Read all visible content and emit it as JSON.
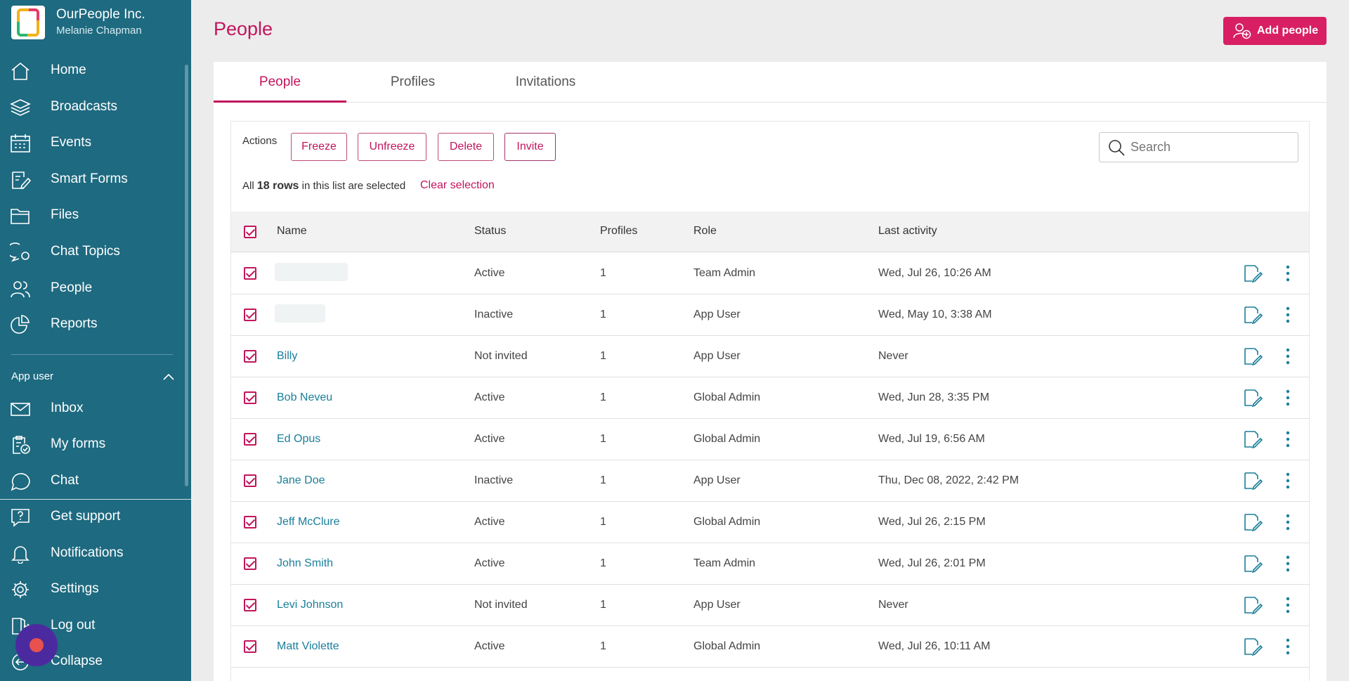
{
  "org": {
    "name": "OurPeople Inc.",
    "user": "Melanie Chapman"
  },
  "sidebar": {
    "items": [
      {
        "label": "Home",
        "icon": "home-icon"
      },
      {
        "label": "Broadcasts",
        "icon": "layers-icon"
      },
      {
        "label": "Events",
        "icon": "calendar-icon"
      },
      {
        "label": "Smart Forms",
        "icon": "form-edit-icon"
      },
      {
        "label": "Files",
        "icon": "folder-icon"
      },
      {
        "label": "Chat Topics",
        "icon": "chat-topics-icon"
      },
      {
        "label": "People",
        "icon": "people-icon"
      },
      {
        "label": "Reports",
        "icon": "pie-chart-icon"
      }
    ],
    "section_label": "App user",
    "app_user_items": [
      {
        "label": "Inbox",
        "icon": "mail-icon"
      },
      {
        "label": "My forms",
        "icon": "clipboard-icon"
      },
      {
        "label": "Chat",
        "icon": "chat-icon"
      }
    ],
    "bottom_items": [
      {
        "label": "Get support",
        "icon": "help-icon"
      },
      {
        "label": "Notifications",
        "icon": "bell-icon"
      },
      {
        "label": "Settings",
        "icon": "gear-icon"
      },
      {
        "label": "Log out",
        "icon": "logout-icon"
      },
      {
        "label": "Collapse",
        "icon": "collapse-icon"
      }
    ]
  },
  "header": {
    "title": "People",
    "add_button": "Add people"
  },
  "tabs": [
    {
      "label": "People"
    },
    {
      "label": "Profiles"
    },
    {
      "label": "Invitations"
    }
  ],
  "actions": {
    "label": "Actions",
    "buttons": [
      "Freeze",
      "Unfreeze",
      "Delete",
      "Invite"
    ],
    "search_placeholder": "Search"
  },
  "selection": {
    "prefix": "All",
    "count": "18 rows",
    "suffix": "in this list are selected",
    "clear": "Clear selection"
  },
  "table": {
    "columns": [
      "Name",
      "Status",
      "Profiles",
      "Role",
      "Last activity"
    ],
    "rows": [
      {
        "name": "",
        "status": "Active",
        "profiles": "1",
        "role": "Team Admin",
        "last": "Wed, Jul 26, 10:26 AM"
      },
      {
        "name": "",
        "status": "Inactive",
        "profiles": "1",
        "role": "App User",
        "last": "Wed, May 10, 3:38 AM"
      },
      {
        "name": "Billy",
        "status": "Not invited",
        "profiles": "1",
        "role": "App User",
        "last": "Never"
      },
      {
        "name": "Bob Neveu",
        "status": "Active",
        "profiles": "1",
        "role": "Global Admin",
        "last": "Wed, Jun 28, 3:35 PM"
      },
      {
        "name": "Ed Opus",
        "status": "Active",
        "profiles": "1",
        "role": "Global Admin",
        "last": "Wed, Jul 19, 6:56 AM"
      },
      {
        "name": "Jane Doe",
        "status": "Inactive",
        "profiles": "1",
        "role": "App User",
        "last": "Thu, Dec 08, 2022, 2:42 PM"
      },
      {
        "name": "Jeff McClure",
        "status": "Active",
        "profiles": "1",
        "role": "Global Admin",
        "last": "Wed, Jul 26, 2:15 PM"
      },
      {
        "name": "John Smith",
        "status": "Active",
        "profiles": "1",
        "role": "Team Admin",
        "last": "Wed, Jul 26, 2:01 PM"
      },
      {
        "name": "Levi Johnson",
        "status": "Not invited",
        "profiles": "1",
        "role": "App User",
        "last": "Never"
      },
      {
        "name": "Matt Violette",
        "status": "Active",
        "profiles": "1",
        "role": "Global Admin",
        "last": "Wed, Jul 26, 10:11 AM"
      }
    ]
  },
  "colors": {
    "sidebar": "#1e6a80",
    "accent": "#c2155d",
    "button": "#d81f63",
    "link": "#1a7f9a"
  }
}
